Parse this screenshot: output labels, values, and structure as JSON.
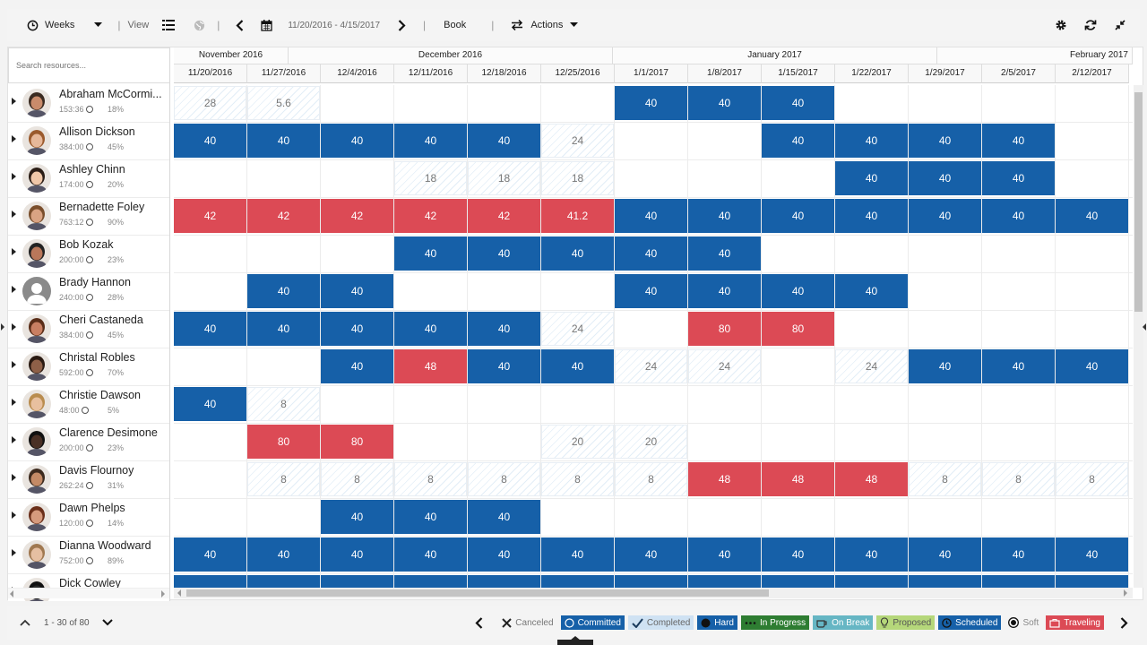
{
  "toolbar": {
    "weeks_label": "Weeks",
    "view_label": "View",
    "date_range": "11/20/2016 - 4/15/2017",
    "book_label": "Book",
    "actions_label": "Actions"
  },
  "search": {
    "placeholder": "Search resources..."
  },
  "months": [
    "November 2016",
    "December 2016",
    "January 2017",
    "February 2017"
  ],
  "weeks": [
    "11/20/2016",
    "11/27/2016",
    "12/4/2016",
    "12/11/2016",
    "12/18/2016",
    "12/25/2016",
    "1/1/2017",
    "1/8/2017",
    "1/15/2017",
    "1/22/2017",
    "1/29/2017",
    "2/5/2017",
    "2/12/2017"
  ],
  "resources": [
    {
      "name": "Abraham McCormi...",
      "hours": "153:36",
      "pct": "18%",
      "cells": [
        [
          "28",
          "s"
        ],
        [
          "5.6",
          "s"
        ],
        null,
        null,
        null,
        null,
        [
          "40",
          "b"
        ],
        [
          "40",
          "b"
        ],
        [
          "40",
          "b"
        ],
        null,
        null,
        null,
        null
      ]
    },
    {
      "name": "Allison Dickson",
      "hours": "384:00",
      "pct": "45%",
      "cells": [
        [
          "40",
          "b"
        ],
        [
          "40",
          "b"
        ],
        [
          "40",
          "b"
        ],
        [
          "40",
          "b"
        ],
        [
          "40",
          "b"
        ],
        [
          "24",
          "s"
        ],
        null,
        null,
        [
          "40",
          "b"
        ],
        [
          "40",
          "b"
        ],
        [
          "40",
          "b"
        ],
        [
          "40",
          "b"
        ],
        null
      ]
    },
    {
      "name": "Ashley Chinn",
      "hours": "174:00",
      "pct": "20%",
      "cells": [
        null,
        null,
        null,
        [
          "18",
          "s"
        ],
        [
          "18",
          "s"
        ],
        [
          "18",
          "s"
        ],
        null,
        null,
        null,
        [
          "40",
          "b"
        ],
        [
          "40",
          "b"
        ],
        [
          "40",
          "b"
        ],
        null
      ]
    },
    {
      "name": "Bernadette Foley",
      "hours": "763:12",
      "pct": "90%",
      "cells": [
        [
          "42",
          "r"
        ],
        [
          "42",
          "r"
        ],
        [
          "42",
          "r"
        ],
        [
          "42",
          "r"
        ],
        [
          "42",
          "r"
        ],
        [
          "41.2",
          "r"
        ],
        [
          "40",
          "b"
        ],
        [
          "40",
          "b"
        ],
        [
          "40",
          "b"
        ],
        [
          "40",
          "b"
        ],
        [
          "40",
          "b"
        ],
        [
          "40",
          "b"
        ],
        [
          "40",
          "b"
        ]
      ]
    },
    {
      "name": "Bob Kozak",
      "hours": "200:00",
      "pct": "23%",
      "cells": [
        null,
        null,
        null,
        [
          "40",
          "b"
        ],
        [
          "40",
          "b"
        ],
        [
          "40",
          "b"
        ],
        [
          "40",
          "b"
        ],
        [
          "40",
          "b"
        ],
        null,
        null,
        null,
        null,
        null
      ]
    },
    {
      "name": "Brady Hannon",
      "hours": "240:00",
      "pct": "28%",
      "cells": [
        null,
        [
          "40",
          "b"
        ],
        [
          "40",
          "b"
        ],
        null,
        null,
        null,
        [
          "40",
          "b"
        ],
        [
          "40",
          "b"
        ],
        [
          "40",
          "b"
        ],
        [
          "40",
          "b"
        ],
        null,
        null,
        null
      ]
    },
    {
      "name": "Cheri Castaneda",
      "hours": "384:00",
      "pct": "45%",
      "cells": [
        [
          "40",
          "b"
        ],
        [
          "40",
          "b"
        ],
        [
          "40",
          "b"
        ],
        [
          "40",
          "b"
        ],
        [
          "40",
          "b"
        ],
        [
          "24",
          "s"
        ],
        null,
        [
          "80",
          "r"
        ],
        [
          "80",
          "r"
        ],
        null,
        null,
        null,
        null
      ]
    },
    {
      "name": "Christal Robles",
      "hours": "592:00",
      "pct": "70%",
      "cells": [
        null,
        null,
        [
          "40",
          "b"
        ],
        [
          "48",
          "r"
        ],
        [
          "40",
          "b"
        ],
        [
          "40",
          "b"
        ],
        [
          "24",
          "s"
        ],
        [
          "24",
          "s"
        ],
        null,
        [
          "24",
          "s"
        ],
        [
          "40",
          "b"
        ],
        [
          "40",
          "b"
        ],
        [
          "40",
          "b"
        ]
      ]
    },
    {
      "name": "Christie Dawson",
      "hours": "48:00",
      "pct": "5%",
      "cells": [
        [
          "40",
          "b"
        ],
        [
          "8",
          "s"
        ],
        null,
        null,
        null,
        null,
        null,
        null,
        null,
        null,
        null,
        null,
        null
      ]
    },
    {
      "name": "Clarence Desimone",
      "hours": "200:00",
      "pct": "23%",
      "cells": [
        null,
        [
          "80",
          "r"
        ],
        [
          "80",
          "r"
        ],
        null,
        null,
        [
          "20",
          "s"
        ],
        [
          "20",
          "s"
        ],
        null,
        null,
        null,
        null,
        null,
        null
      ]
    },
    {
      "name": "Davis Flournoy",
      "hours": "262:24",
      "pct": "31%",
      "cells": [
        null,
        [
          "8",
          "s"
        ],
        [
          "8",
          "s"
        ],
        [
          "8",
          "s"
        ],
        [
          "8",
          "s"
        ],
        [
          "8",
          "s"
        ],
        [
          "8",
          "s"
        ],
        [
          "48",
          "r"
        ],
        [
          "48",
          "r"
        ],
        [
          "48",
          "r"
        ],
        [
          "8",
          "s"
        ],
        [
          "8",
          "s"
        ],
        [
          "8",
          "s"
        ]
      ]
    },
    {
      "name": "Dawn Phelps",
      "hours": "120:00",
      "pct": "14%",
      "cells": [
        null,
        null,
        [
          "40",
          "b"
        ],
        [
          "40",
          "b"
        ],
        [
          "40",
          "b"
        ],
        null,
        null,
        null,
        null,
        null,
        null,
        null,
        null
      ]
    },
    {
      "name": "Dianna Woodward",
      "hours": "752:00",
      "pct": "89%",
      "cells": [
        [
          "40",
          "b"
        ],
        [
          "40",
          "b"
        ],
        [
          "40",
          "b"
        ],
        [
          "40",
          "b"
        ],
        [
          "40",
          "b"
        ],
        [
          "40",
          "b"
        ],
        [
          "40",
          "b"
        ],
        [
          "40",
          "b"
        ],
        [
          "40",
          "b"
        ],
        [
          "40",
          "b"
        ],
        [
          "40",
          "b"
        ],
        [
          "40",
          "b"
        ],
        [
          "40",
          "b"
        ]
      ]
    },
    {
      "name": "Dick Cowley",
      "hours": "",
      "pct": "",
      "cells": [
        [
          "",
          "b"
        ],
        [
          "",
          "b"
        ],
        [
          "",
          "b"
        ],
        [
          "",
          "b"
        ],
        [
          "",
          "b"
        ],
        [
          "",
          "b"
        ],
        [
          "",
          "b"
        ],
        [
          "",
          "b"
        ],
        [
          "",
          "b"
        ],
        [
          "",
          "b"
        ],
        [
          "",
          "b"
        ],
        [
          "",
          "b"
        ],
        [
          "",
          "b"
        ]
      ]
    }
  ],
  "pager": {
    "range": "1 - 30 of 80"
  },
  "legend": [
    {
      "label": "Canceled",
      "bg": "#f4f4f4",
      "color": "#777",
      "icon": "x-icon"
    },
    {
      "label": "Committed",
      "bg": "#1660a8",
      "color": "#fff",
      "icon": "committed-icon"
    },
    {
      "label": "Completed",
      "bg": "#cfe2f3",
      "color": "#666",
      "icon": "check-icon"
    },
    {
      "label": "Hard",
      "bg": "#1660a8",
      "color": "#fff",
      "icon": "hard-icon"
    },
    {
      "label": "In Progress",
      "bg": "#2e7d32",
      "color": "#fff",
      "icon": "progress-icon"
    },
    {
      "label": "On Break",
      "bg": "#66b6c4",
      "color": "#fff",
      "icon": "coffee-icon"
    },
    {
      "label": "Proposed",
      "bg": "#b5d77a",
      "color": "#555",
      "icon": "bulb-icon"
    },
    {
      "label": "Scheduled",
      "bg": "#1660a8",
      "color": "#fff",
      "icon": "clock-icon"
    },
    {
      "label": "Soft",
      "bg": "#f4f4f4",
      "color": "#888",
      "icon": "soft-icon"
    },
    {
      "label": "Traveling",
      "bg": "#dc4a55",
      "color": "#fff",
      "icon": "suitcase-icon"
    }
  ],
  "colors": {
    "hard": "#1660a8",
    "over": "#dc4a55"
  }
}
